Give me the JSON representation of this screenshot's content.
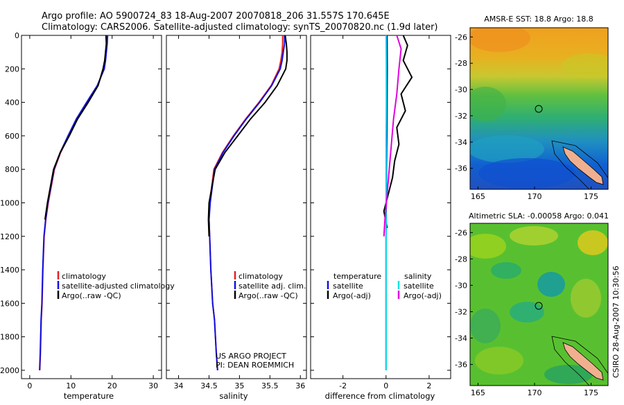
{
  "header": {
    "line1": "Argo profile: AO 5900724_83 18-Aug-2007 20070818_206 31.557S 170.645E",
    "line2": "Climatology: CARS2006. Satellite-adjusted climatology: synTS_20070820.nc (1.9d later)"
  },
  "stamp": "CSIRO 28-Aug-2007 10:30:56",
  "colors": {
    "climatology": "#e02020",
    "satellite": "#1010e0",
    "argo": "#000000",
    "satellite_diff": "#00e6e6",
    "argo_adj_diff": "#e000e0"
  },
  "chart_data": [
    {
      "type": "line",
      "name": "temperature",
      "xlabel": "temperature",
      "ylabel": "",
      "xlim": [
        -2,
        32
      ],
      "ylim": [
        2050,
        0
      ],
      "xticks": [
        0,
        10,
        20,
        30
      ],
      "yticks": [
        0,
        200,
        400,
        600,
        800,
        1000,
        1200,
        1400,
        1600,
        1800,
        2000
      ],
      "legend": [
        "climatology",
        "satellite-adjusted climatology",
        "Argo(..raw -QC)"
      ],
      "series": [
        {
          "name": "climatology",
          "color": "#e02020",
          "x": [
            18.7,
            18.6,
            18.5,
            18.3,
            18.0,
            16.5,
            14.0,
            11.5,
            9.5,
            7.5,
            6.0,
            4.5,
            3.9,
            3.5,
            3.2,
            3.0,
            2.8,
            2.6,
            2.45
          ],
          "y": [
            0,
            50,
            100,
            150,
            200,
            300,
            400,
            500,
            600,
            700,
            800,
            1000,
            1100,
            1200,
            1400,
            1600,
            1700,
            1900,
            2000
          ]
        },
        {
          "name": "satellite-adjusted climatology",
          "color": "#1010e0",
          "x": [
            18.9,
            18.8,
            18.6,
            18.4,
            18.1,
            16.4,
            13.8,
            11.3,
            9.3,
            7.4,
            5.9,
            4.4,
            3.85,
            3.45,
            3.15,
            2.95,
            2.75,
            2.55,
            2.4
          ],
          "y": [
            0,
            50,
            100,
            150,
            200,
            300,
            400,
            500,
            600,
            700,
            800,
            1000,
            1100,
            1200,
            1400,
            1600,
            1700,
            1900,
            2000
          ]
        },
        {
          "name": "Argo(..raw -QC)",
          "color": "#000000",
          "x": [
            18.5,
            18.6,
            18.4,
            18.2,
            17.8,
            16.6,
            14.2,
            11.6,
            9.6,
            7.4,
            5.8,
            4.3,
            3.7
          ],
          "y": [
            0,
            50,
            100,
            150,
            200,
            300,
            400,
            500,
            600,
            700,
            800,
            1000,
            1100
          ]
        }
      ]
    },
    {
      "type": "line",
      "name": "salinity",
      "xlabel": "salinity",
      "ylabel": "",
      "xlim": [
        33.8,
        36.1
      ],
      "ylim": [
        2050,
        0
      ],
      "xticks": [
        34,
        34.5,
        35,
        35.5,
        36
      ],
      "legend": [
        "climatology",
        "satellite adj. clim.",
        "Argo(..raw -QC)"
      ],
      "series": [
        {
          "name": "climatology",
          "color": "#e02020",
          "x": [
            35.71,
            35.71,
            35.7,
            35.68,
            35.65,
            35.52,
            35.32,
            35.1,
            34.9,
            34.72,
            34.58,
            34.51,
            34.5,
            34.51,
            34.53,
            34.56,
            34.59,
            34.62,
            34.64
          ],
          "y": [
            0,
            50,
            100,
            150,
            200,
            300,
            400,
            500,
            600,
            700,
            800,
            1000,
            1100,
            1200,
            1400,
            1600,
            1700,
            1900,
            2000
          ]
        },
        {
          "name": "satellite adj. clim.",
          "color": "#1010e0",
          "x": [
            35.74,
            35.74,
            35.72,
            35.7,
            35.67,
            35.53,
            35.33,
            35.11,
            34.91,
            34.73,
            34.59,
            34.52,
            34.5,
            34.51,
            34.53,
            34.56,
            34.59,
            34.62,
            34.64
          ],
          "y": [
            0,
            50,
            100,
            150,
            200,
            300,
            400,
            500,
            600,
            700,
            800,
            1000,
            1100,
            1200,
            1400,
            1600,
            1700,
            1900,
            2000
          ]
        },
        {
          "name": "Argo(..raw -QC)",
          "color": "#000000",
          "x": [
            35.75,
            35.77,
            35.78,
            35.78,
            35.76,
            35.62,
            35.42,
            35.18,
            34.97,
            34.76,
            34.6,
            34.5,
            34.49,
            34.5
          ],
          "y": [
            0,
            50,
            100,
            150,
            200,
            300,
            400,
            500,
            600,
            700,
            800,
            1000,
            1100,
            1200
          ]
        }
      ],
      "annotation": [
        "US ARGO PROJECT",
        "PI: DEAN ROEMMICH"
      ]
    },
    {
      "type": "line",
      "name": "difference",
      "xlabel": "difference from climatology",
      "ylabel": "",
      "xlim": [
        -3.5,
        3
      ],
      "ylim": [
        2050,
        0
      ],
      "xticks": [
        -2,
        0,
        2
      ],
      "legend_groups": [
        {
          "title": "temperature",
          "items": [
            "satellite",
            "Argo(-adj)"
          ]
        },
        {
          "title": "salinity",
          "items": [
            "satellite",
            "Argo(-adj)"
          ]
        }
      ],
      "series": [
        {
          "name": "temperature satellite",
          "color": "#1010e0",
          "x": [
            0.05,
            0.06,
            0.05,
            0.04,
            0.02,
            0.01,
            0.0,
            0.0,
            0.0,
            0.0
          ],
          "y": [
            0,
            200,
            400,
            600,
            800,
            1000,
            1200,
            1400,
            1600,
            2000
          ]
        },
        {
          "name": "temperature Argo(-adj)",
          "color": "#000000",
          "x": [
            0.8,
            1.0,
            0.8,
            1.2,
            0.7,
            0.9,
            0.5,
            0.6,
            0.4,
            0.3,
            0.1,
            -0.1,
            0.05
          ],
          "y": [
            0,
            60,
            150,
            250,
            350,
            450,
            550,
            650,
            750,
            850,
            950,
            1050,
            1150
          ]
        },
        {
          "name": "salinity satellite",
          "color": "#00e6e6",
          "x": [
            0.0,
            0.01,
            0.01,
            0.0,
            0.0,
            0.0,
            0.0,
            0.0,
            0.0,
            0.0
          ],
          "y": [
            0,
            200,
            400,
            600,
            800,
            1000,
            1200,
            1400,
            1600,
            2000
          ]
        },
        {
          "name": "salinity Argo(-adj)",
          "color": "#e000e0",
          "x": [
            0.5,
            0.7,
            0.6,
            0.5,
            0.35,
            0.25,
            0.15,
            0.05,
            -0.05,
            -0.1
          ],
          "y": [
            0,
            80,
            200,
            350,
            500,
            650,
            800,
            950,
            1100,
            1200
          ]
        }
      ]
    }
  ],
  "maps": [
    {
      "title": "AMSR-E SST: 18.8 Argo: 18.8",
      "xticks": [
        165,
        170,
        175
      ],
      "yticks": [
        -26,
        -28,
        -30,
        -32,
        -34,
        -36
      ]
    },
    {
      "title": "Altimetric SLA: -0.00058 Argo: 0.041",
      "xticks": [
        165,
        170,
        175
      ],
      "yticks": [
        -26,
        -28,
        -30,
        -32,
        -34,
        -36
      ]
    }
  ]
}
